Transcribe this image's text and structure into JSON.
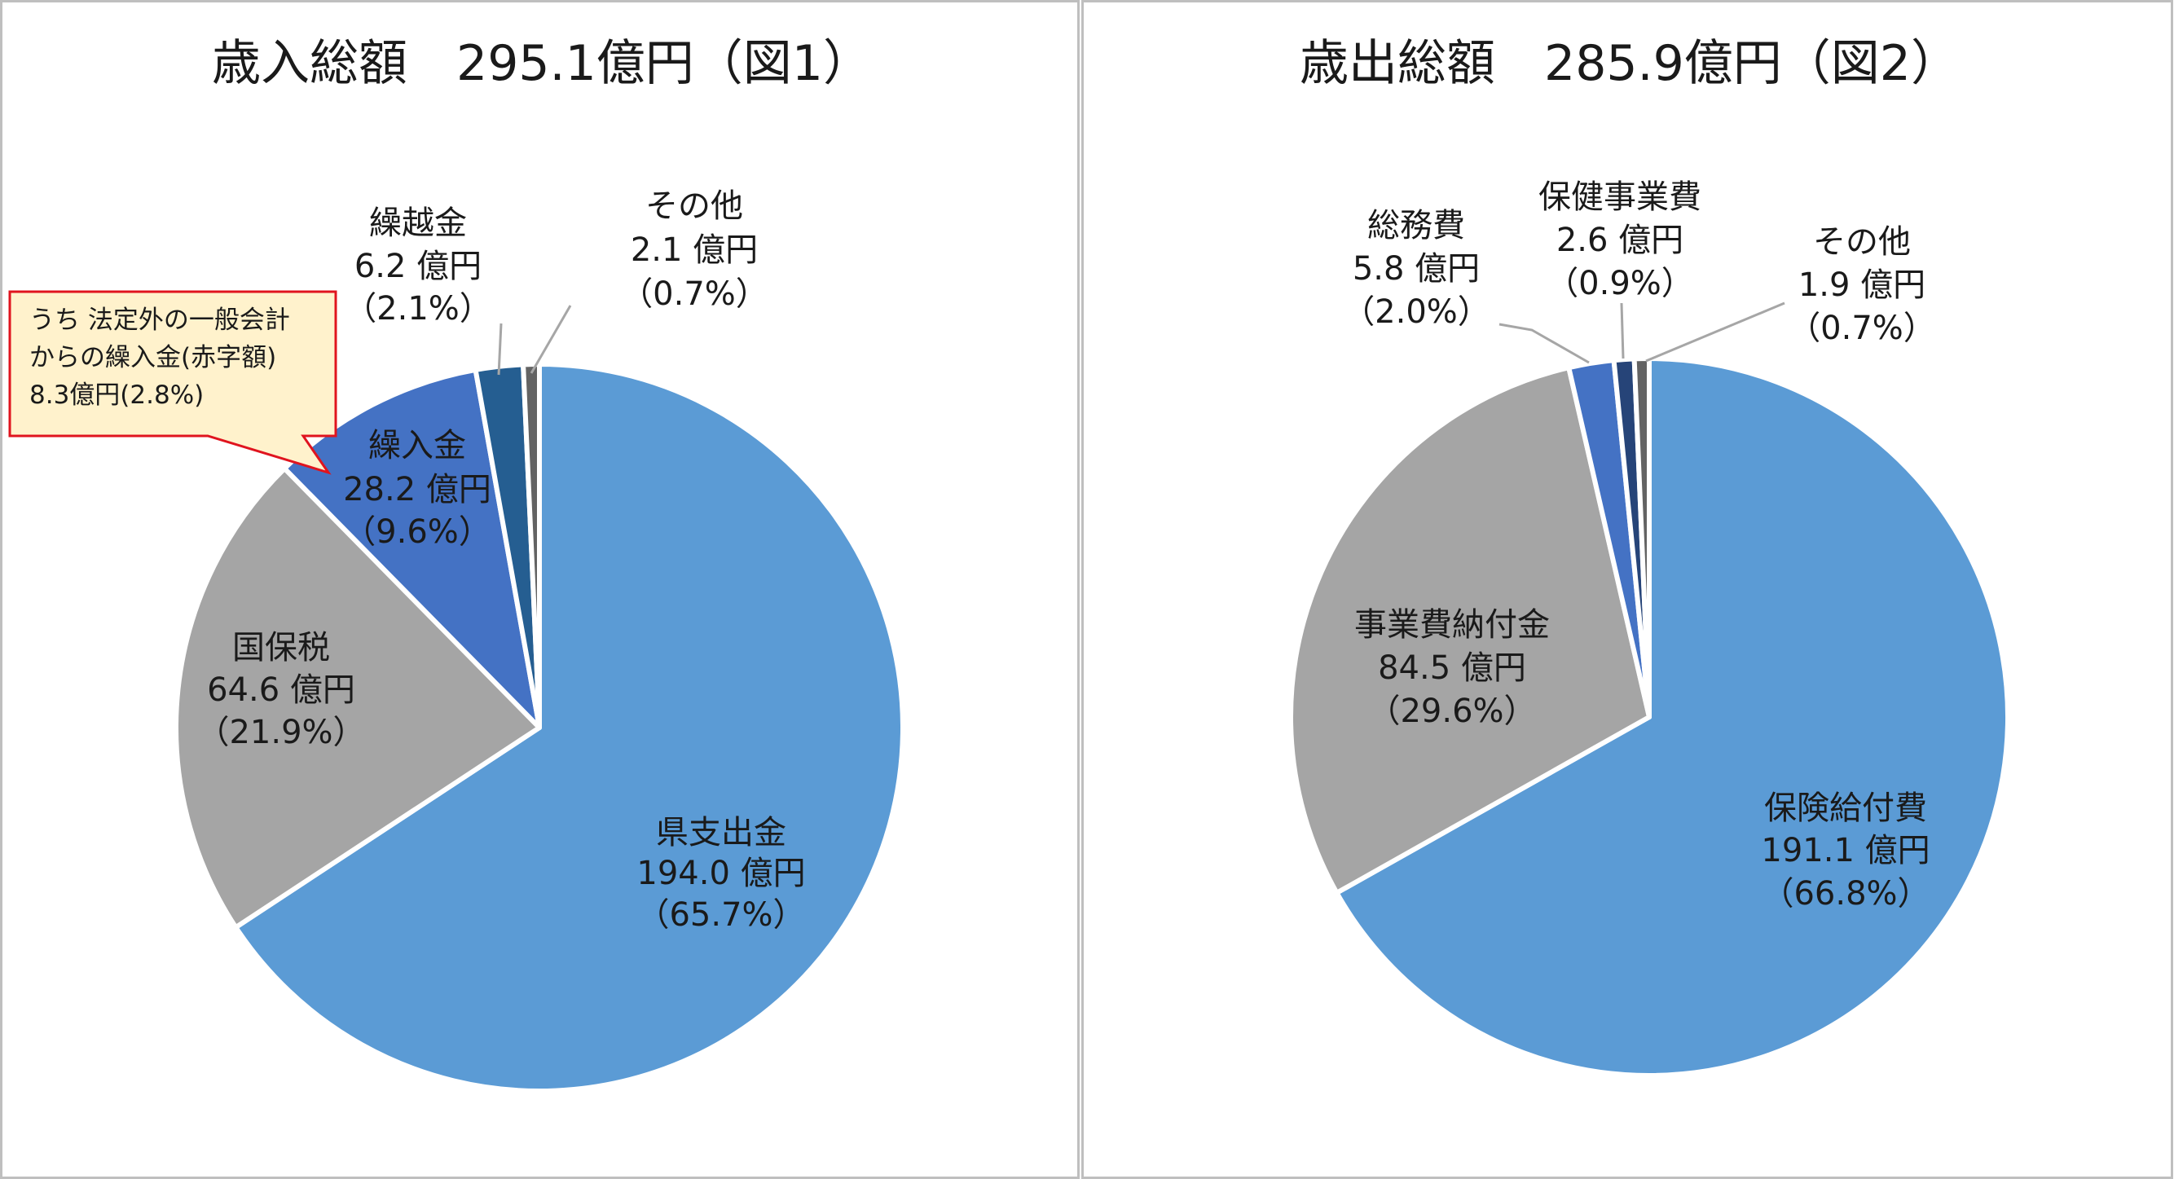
{
  "colors": {
    "blue_light": "#5b9bd5",
    "gray": "#a5a5a5",
    "blue_mid": "#4472c4",
    "blue_dark": "#255e91",
    "dark_gray": "#636363",
    "deep_blue": "#264478",
    "callout_fill": "#fff2cc",
    "callout_border": "#e0141e",
    "panel_border": "#bfbfbf"
  },
  "chart_data": [
    {
      "type": "pie",
      "title": "歳入総額　295.1億円（図1）",
      "unit": "億円",
      "slices": [
        {
          "name": "県支出金",
          "value": 194.0,
          "value_text": "194.0 億円",
          "percent_text": "（65.7%）",
          "color": "#5b9bd5"
        },
        {
          "name": "国保税",
          "value": 64.6,
          "value_text": "64.6 億円",
          "percent_text": "（21.9%）",
          "color": "#a5a5a5"
        },
        {
          "name": "繰入金",
          "value": 28.2,
          "value_text": "28.2 億円",
          "percent_text": "（9.6%）",
          "color": "#4472c4"
        },
        {
          "name": "繰越金",
          "value": 6.2,
          "value_text": "6.2 億円",
          "percent_text": "（2.1%）",
          "color": "#255e91"
        },
        {
          "name": "その他",
          "value": 2.1,
          "value_text": "2.1 億円",
          "percent_text": "（0.7%）",
          "color": "#636363"
        }
      ],
      "annotation": {
        "lines": [
          "うち 法定外の一般会計",
          "からの繰入金(赤字額)",
          "8.3億円(2.8%)"
        ]
      }
    },
    {
      "type": "pie",
      "title": "歳出総額　285.9億円（図2）",
      "unit": "億円",
      "slices": [
        {
          "name": "保険給付費",
          "value": 191.1,
          "value_text": "191.1 億円",
          "percent_text": "（66.8%）",
          "color": "#5b9bd5"
        },
        {
          "name": "事業費納付金",
          "value": 84.5,
          "value_text": "84.5 億円",
          "percent_text": "（29.6%）",
          "color": "#a5a5a5"
        },
        {
          "name": "総務費",
          "value": 5.8,
          "value_text": "5.8 億円",
          "percent_text": "（2.0%）",
          "color": "#4472c4"
        },
        {
          "name": "保健事業費",
          "value": 2.6,
          "value_text": "2.6 億円",
          "percent_text": "（0.9%）",
          "color": "#264478"
        },
        {
          "name": "その他",
          "value": 1.9,
          "value_text": "1.9 億円",
          "percent_text": "（0.7%）",
          "color": "#636363"
        }
      ]
    }
  ]
}
